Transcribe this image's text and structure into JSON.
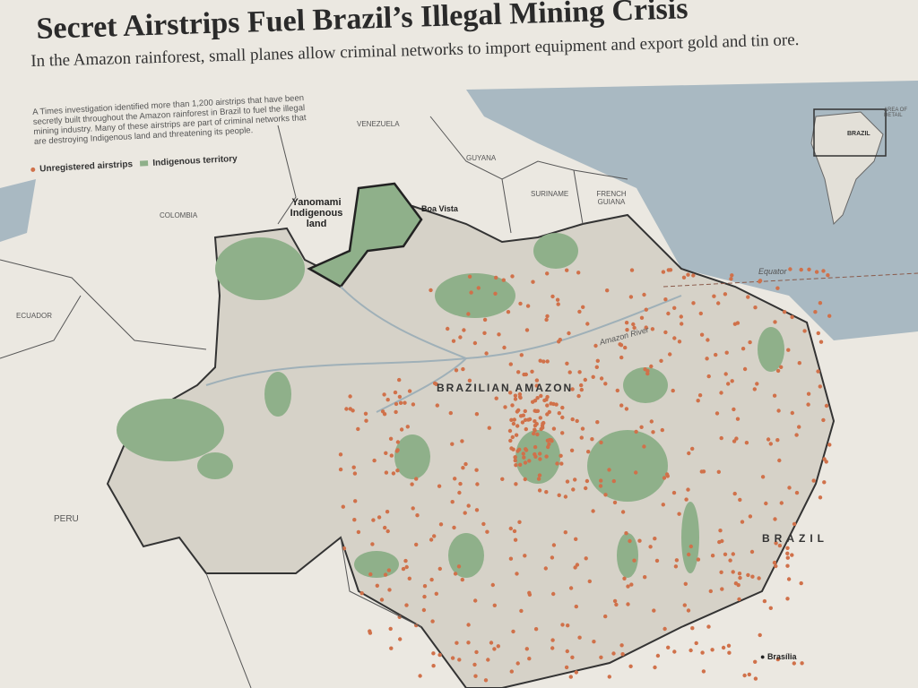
{
  "title": "Secret Airstrips Fuel Brazil’s Illegal Mining Crisis",
  "subtitle": "In the Amazon rainforest, small planes allow criminal networks to import equipment and export gold and tin ore.",
  "intro": "A Times investigation identified more than 1,200 airstrips that have been secretly built throughout the Amazon rainforest in Brazil to fuel the illegal mining industry. Many of these airstrips are part of criminal networks that are destroying Indigenous land and threatening its people.",
  "legend": {
    "airstrips": "Unregistered airstrips",
    "territory": "Indigenous territory"
  },
  "labels": {
    "venezuela": "VENEZUELA",
    "guyana": "GUYANA",
    "suriname": "SURINAME",
    "french_guiana": "FRENCH GUIANA",
    "colombia": "COLOMBIA",
    "ecuador": "ECUADOR",
    "peru": "PERU",
    "yanomami": "Yanomami Indigenous land",
    "boa_vista": "Boa Vista",
    "equator": "Equator",
    "amazon_river": "Amazon River",
    "brazilian_amazon": "BRAZILIAN AMAZON",
    "brazil": "BRAZIL",
    "brasilia": "Brasília"
  },
  "inset": {
    "area_label": "AREA OF DETAIL",
    "country": "BRAZIL"
  },
  "colors": {
    "airstrip": "#d0714a",
    "territory": "#8fb08a",
    "amazon": "#d6d2c8",
    "ocean": "#a9b9c2",
    "land": "#ebe8e1"
  }
}
